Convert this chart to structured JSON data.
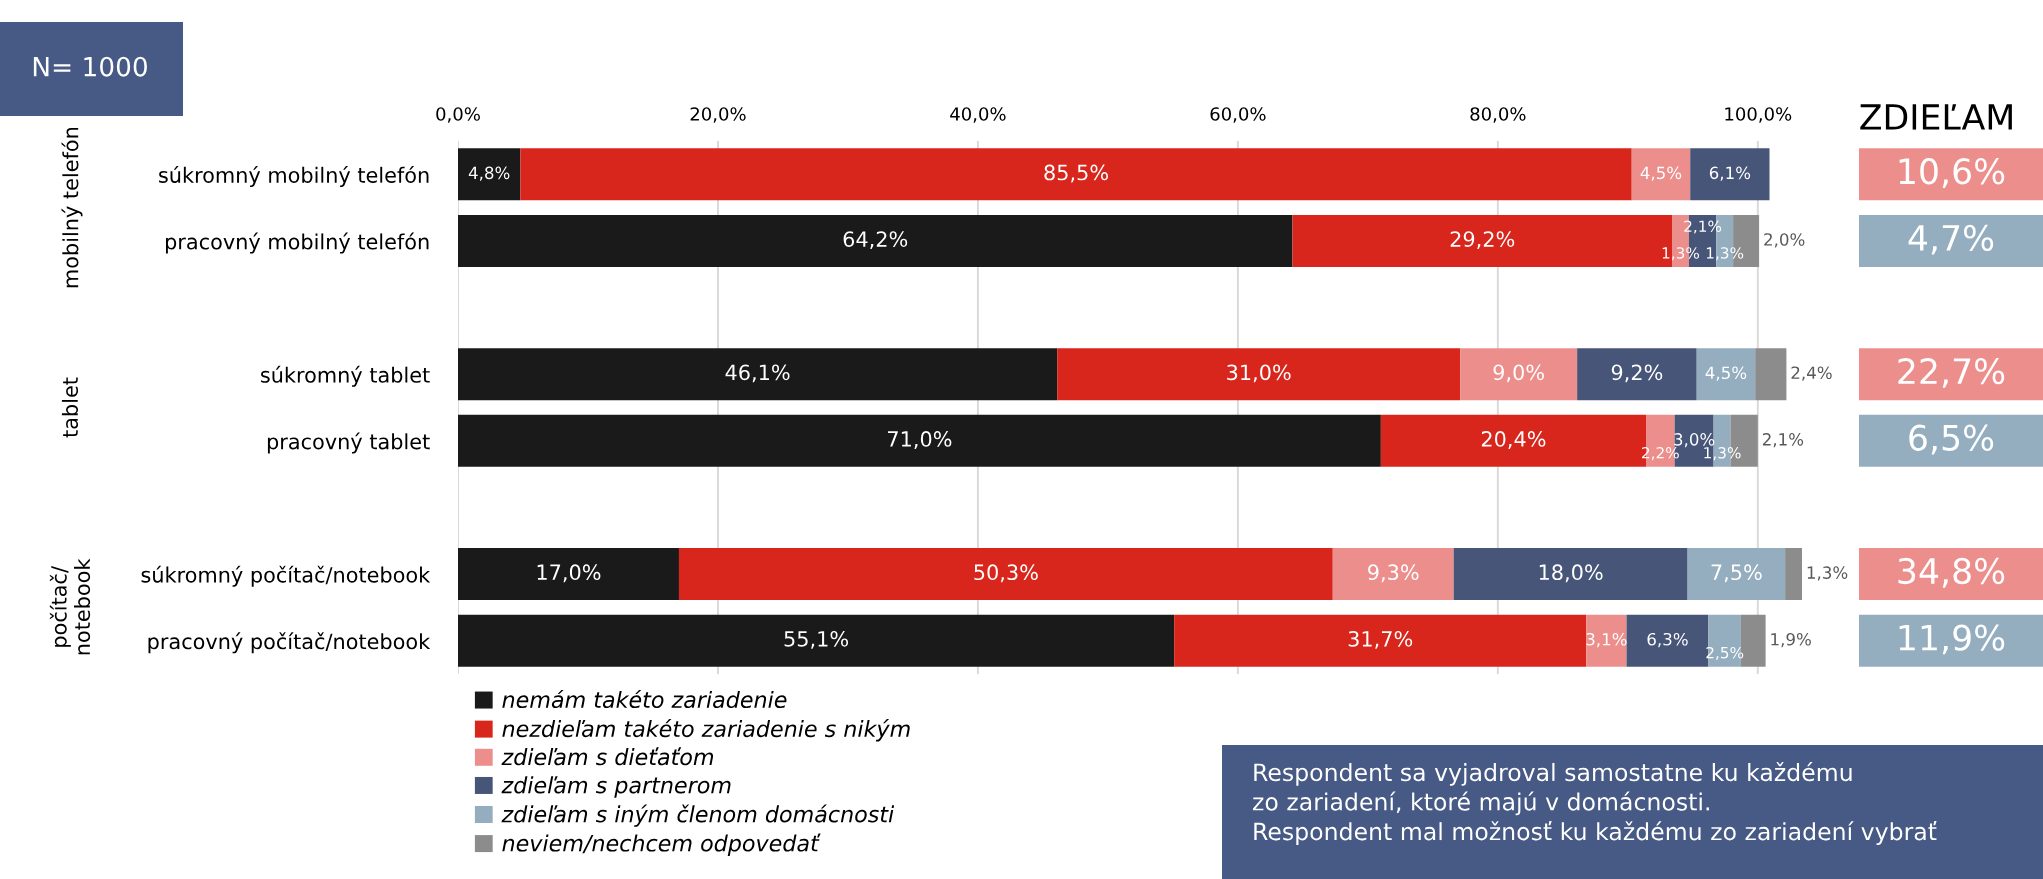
{
  "chart_data": {
    "type": "bar",
    "orientation": "horizontal",
    "stacked": true,
    "categories": [
      "súkromný mobilný telefón",
      "pracovný mobilný telefón",
      null,
      "súkromný tablet",
      "pracovný tablet",
      null,
      "súkromný počítač/notebook",
      "pracovný počítač/notebook"
    ],
    "series": [
      {
        "name": "nemám takéto zariadenie",
        "color": "#1a1a1a",
        "values": [
          4.8,
          64.2,
          null,
          46.1,
          71.0,
          null,
          17.0,
          55.1
        ],
        "value_labels": [
          "4,8%",
          "64,2%",
          null,
          "46,1%",
          "71,0%",
          null,
          "17,0%",
          "55,1%"
        ]
      },
      {
        "name": "nezdieľam takéto zariadenie s nikým",
        "color": "#d9261c",
        "values": [
          85.5,
          29.2,
          null,
          31.0,
          20.4,
          null,
          50.3,
          31.7
        ],
        "value_labels": [
          "85,5%",
          "29,2%",
          null,
          "31,0%",
          "20,4%",
          null,
          "50,3%",
          "31,7%"
        ]
      },
      {
        "name": "zdieľam s dieťaťom",
        "color": "#ec8f8c",
        "values": [
          4.5,
          1.3,
          null,
          9.0,
          2.2,
          null,
          9.3,
          3.1
        ],
        "value_labels": [
          "4,5%",
          "1,3%",
          null,
          "9,0%",
          "2,2%",
          null,
          "9,3%",
          "3,1%"
        ]
      },
      {
        "name": "zdieľam s partnerom",
        "color": "#475678",
        "values": [
          6.1,
          2.1,
          null,
          9.2,
          3.0,
          null,
          18.0,
          6.3
        ],
        "value_labels": [
          "6,1%",
          "2,1%",
          null,
          "9,2%",
          "3,0%",
          null,
          "18,0%",
          "6,3%"
        ]
      },
      {
        "name": "zdieľam s iným členom domácnosti",
        "color": "#95aebf",
        "values": [
          null,
          1.3,
          null,
          4.5,
          1.3,
          null,
          7.5,
          2.5
        ],
        "value_labels": [
          null,
          "1,3%",
          null,
          "4,5%",
          "1,3%",
          null,
          "7,5%",
          "2,5%"
        ]
      },
      {
        "name": "neviem/nechcem odpovedať",
        "color": "#8c8c8c",
        "values": [
          null,
          2.0,
          null,
          2.4,
          2.1,
          null,
          1.3,
          1.9
        ],
        "value_labels": [
          null,
          "2,0%",
          null,
          "2,4%",
          "2,1%",
          null,
          "1,3%",
          "1,9%"
        ]
      }
    ],
    "xlim": [
      0,
      103.4
    ],
    "xticks": [
      {
        "value": 0,
        "label": "0,0%"
      },
      {
        "value": 20,
        "label": "20,0%"
      },
      {
        "value": 40,
        "label": "40,0%"
      },
      {
        "value": 60,
        "label": "60,0%"
      },
      {
        "value": 80,
        "label": "80,0%"
      },
      {
        "value": 100,
        "label": "100,0%"
      }
    ],
    "grid": "x",
    "legend": "bottom",
    "annotations": [
      "mobilný telefón",
      "tablet",
      "počítač/\nnotebook",
      "N= 1000",
      "ZDIEĽAM",
      "10,6%",
      "4,7%",
      "22,7%",
      "6,5%",
      "34,8%",
      "11,9%",
      "Respondent sa vyjadroval samostatne ku každému\nzo zariadení, ktoré majú v domácnosti.\nRespondent mal možnosť ku každému zo zariadení vybrať"
    ]
  }
}
